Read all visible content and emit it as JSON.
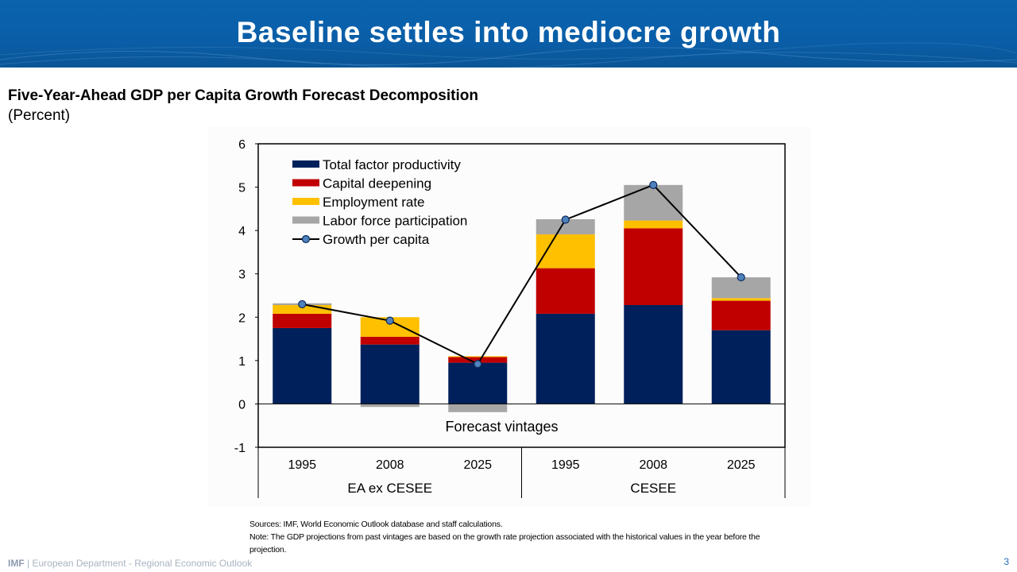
{
  "header": {
    "title": "Baseline settles into mediocre growth"
  },
  "chart_data": {
    "type": "bar",
    "stacked": true,
    "title": "Five-Year-Ahead GDP per Capita Growth Forecast Decomposition",
    "subtitle": "(Percent)",
    "xlabel": "Forecast vintages",
    "ylabel": "",
    "ylim": [
      -1,
      6
    ],
    "yticks": [
      6,
      5,
      4,
      3,
      2,
      1,
      0,
      -1
    ],
    "categories": [
      "1995",
      "2008",
      "2025",
      "1995",
      "2008",
      "2025"
    ],
    "groups": [
      {
        "label": "EA ex CESEE",
        "categories": [
          "1995",
          "2008",
          "2025"
        ]
      },
      {
        "label": "CESEE",
        "categories": [
          "1995",
          "2008",
          "2025"
        ]
      }
    ],
    "series": [
      {
        "name": "Total factor productivity",
        "color": "#00205b",
        "values": [
          1.75,
          1.37,
          0.95,
          2.08,
          2.28,
          1.7
        ]
      },
      {
        "name": "Capital deepening",
        "color": "#c00000",
        "values": [
          0.33,
          0.18,
          0.13,
          1.05,
          1.77,
          0.68
        ]
      },
      {
        "name": "Employment rate",
        "color": "#ffc000",
        "values": [
          0.2,
          0.45,
          0.02,
          0.78,
          0.18,
          0.06
        ]
      },
      {
        "name": "Labor force participation",
        "color": "#a6a6a6",
        "values": [
          0.04,
          -0.07,
          -0.19,
          0.35,
          0.82,
          0.48
        ]
      }
    ],
    "line_series": {
      "name": "Growth per capita",
      "color": "#4f81bd",
      "values": [
        2.3,
        1.92,
        0.92,
        4.25,
        5.05,
        2.92
      ]
    },
    "legend_position": "top-left"
  },
  "notes": {
    "sources": "Sources: IMF, World Economic Outlook database and staff calculations.",
    "note": "Note: The GDP projections from past vintages are based on the growth rate projection associated with the historical values in the year before the projection."
  },
  "footer": {
    "org": "IMF",
    "separator": " | ",
    "department": "European Department - Regional Economic Outlook"
  },
  "page_number": "3"
}
